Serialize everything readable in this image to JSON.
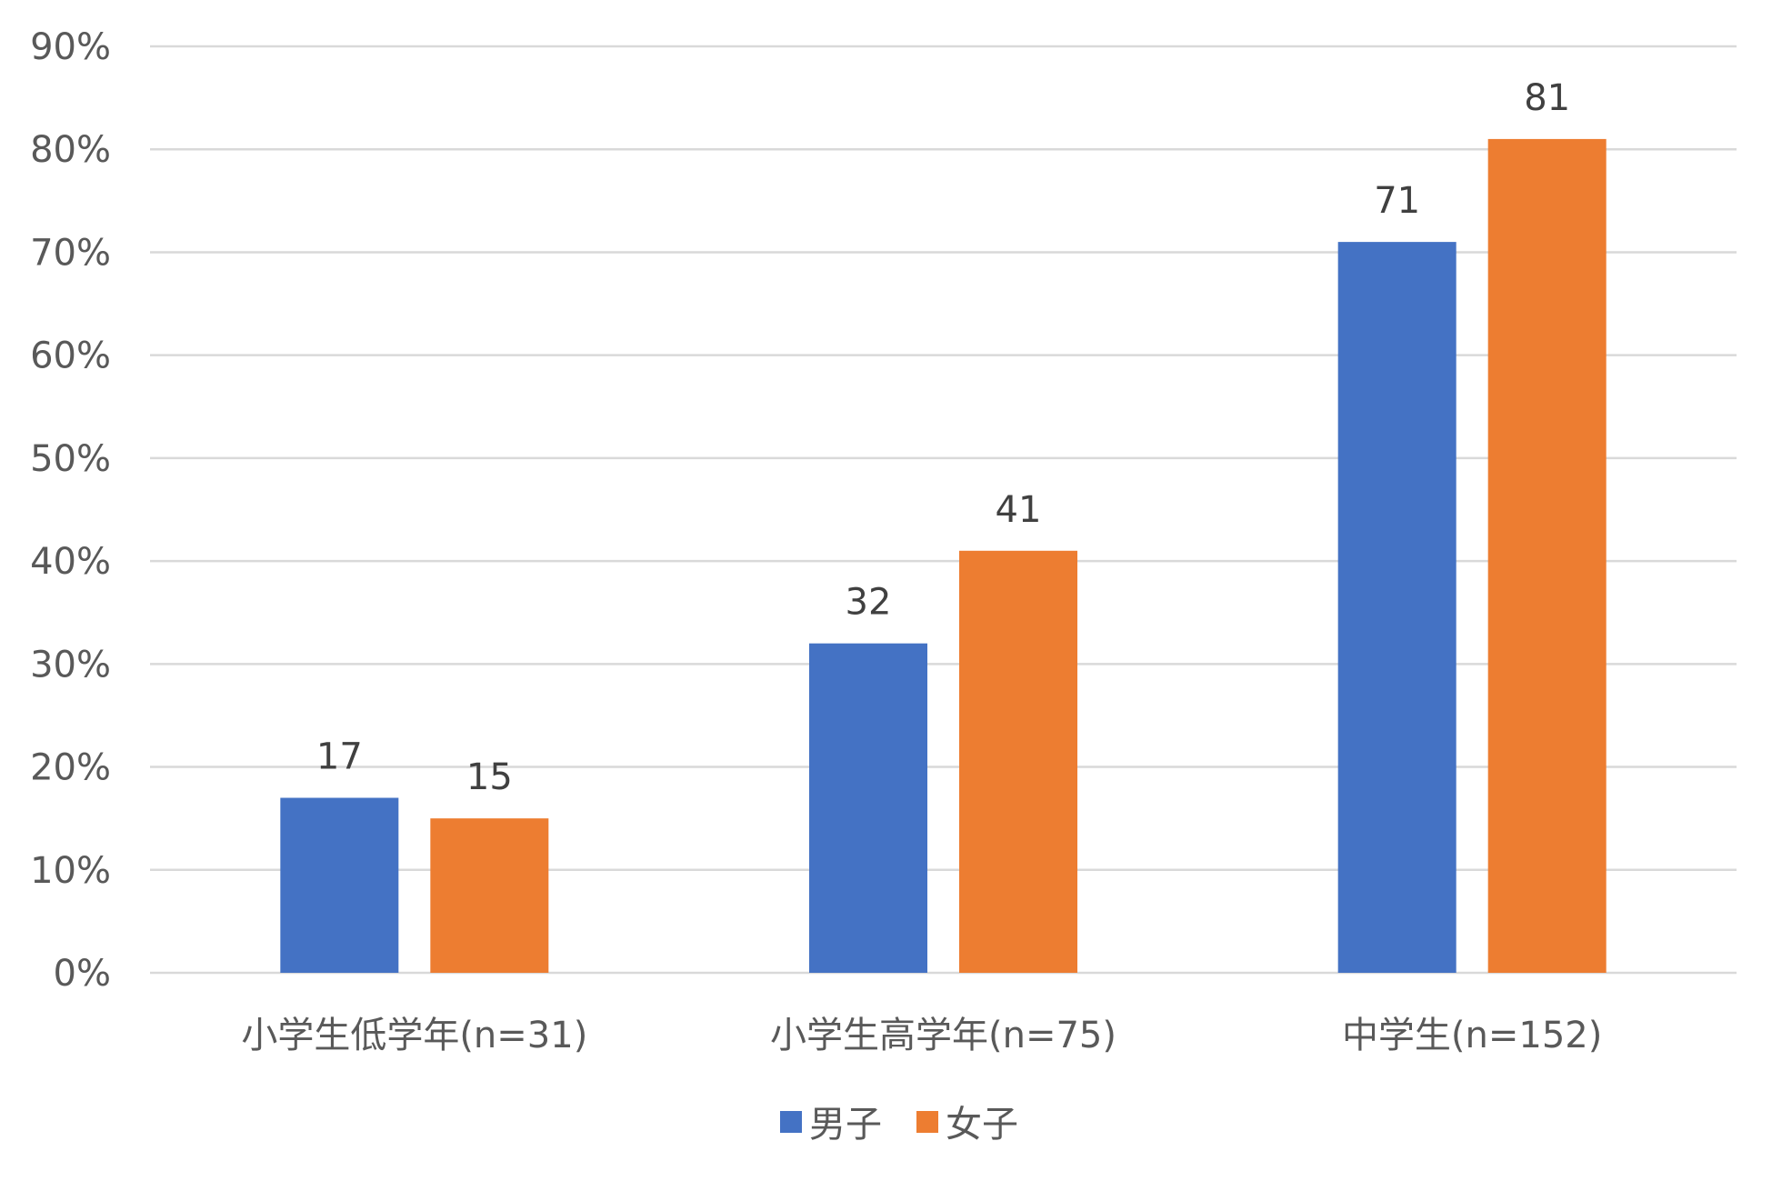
{
  "chart_data": {
    "type": "bar",
    "title": "",
    "xlabel": "",
    "ylabel": "",
    "categories": [
      "小学生低学年(n=31)",
      "小学生高学年(n=75)",
      "中学生(n=152)"
    ],
    "series": [
      {
        "name": "男子",
        "color": "#4472C4",
        "values": [
          17,
          32,
          71
        ]
      },
      {
        "name": "女子",
        "color": "#ED7D31",
        "values": [
          15,
          41,
          81
        ]
      }
    ],
    "ylim": [
      0,
      90
    ],
    "yticks": [
      0,
      10,
      20,
      30,
      40,
      50,
      60,
      70,
      80,
      90
    ],
    "ytick_labels": [
      "0%",
      "10%",
      "20%",
      "30%",
      "40%",
      "50%",
      "60%",
      "70%",
      "80%",
      "90%"
    ],
    "grid": true,
    "legend_position": "bottom",
    "data_labels": true
  }
}
